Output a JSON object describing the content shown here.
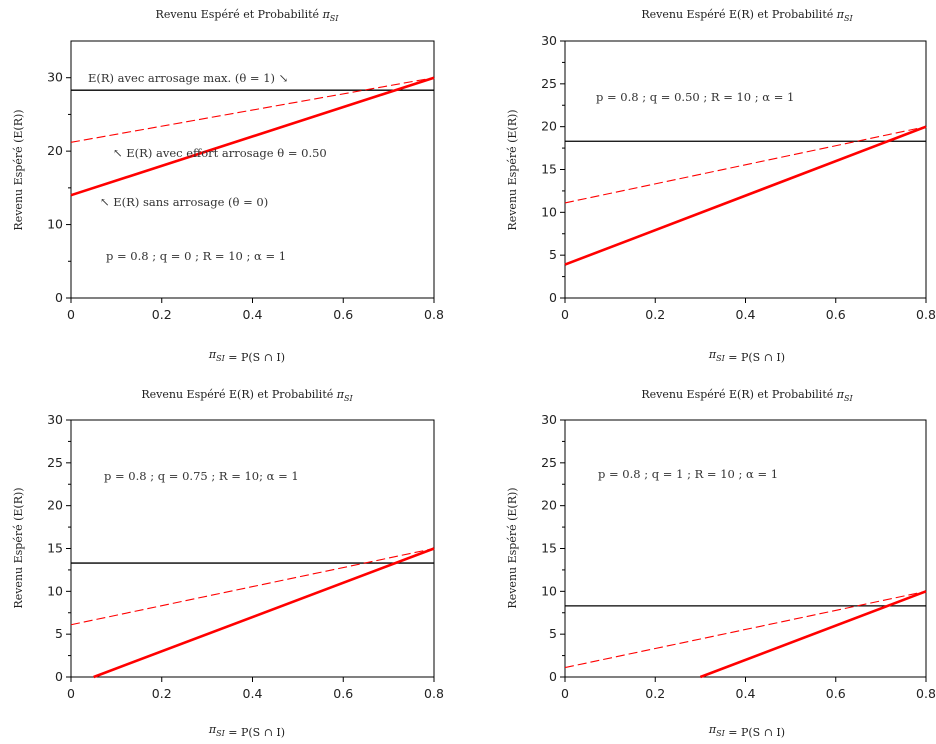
{
  "chart_data": [
    {
      "type": "line",
      "title": "Revenu Espéré et Probabilité π_SI",
      "xlabel": "π_SI = P(S ∩ I)",
      "ylabel": "Revenu Espéré (E(R))",
      "xlim": [
        0,
        0.8
      ],
      "ylim": [
        0,
        35
      ],
      "xticks": [
        "0",
        "0.2",
        "0.4",
        "0.6",
        "0.8"
      ],
      "yticks": [
        "0",
        "10",
        "20",
        "30"
      ],
      "series": [
        {
          "x": [
            0,
            0.8
          ],
          "y": [
            28.3,
            28.3
          ],
          "color": "#000000",
          "style": "solid"
        },
        {
          "x": [
            0,
            0.8
          ],
          "y": [
            21.2,
            30.0
          ],
          "color": "#ff0000",
          "style": "dashed"
        },
        {
          "x": [
            0,
            0.8
          ],
          "y": [
            14.0,
            30.0
          ],
          "color": "#ff0000",
          "style": "solid-thick"
        }
      ],
      "annotations": [
        "E(R) avec arrosage max. (θ = 1) ↘",
        "↖ E(R) avec effort arrosage  θ = 0.50",
        "↖ E(R) sans arrosage (θ = 0)",
        "p  =  0.8 ;  q  =  0 ;  R  =  10 ;  α = 1"
      ]
    },
    {
      "type": "line",
      "title": "Revenu Espéré E(R) et Probabilité π_SI",
      "xlabel": "π_SI = P(S ∩ I)",
      "ylabel": "Revenu Espéré (E(R))",
      "xlim": [
        0,
        0.8
      ],
      "ylim": [
        0,
        30
      ],
      "xticks": [
        "0",
        "0.2",
        "0.4",
        "0.6",
        "0.8"
      ],
      "yticks": [
        "0",
        "5",
        "10",
        "15",
        "20",
        "25",
        "30"
      ],
      "series": [
        {
          "x": [
            0,
            0.8
          ],
          "y": [
            18.3,
            18.3
          ],
          "color": "#000000",
          "style": "solid"
        },
        {
          "x": [
            0,
            0.8
          ],
          "y": [
            11.1,
            20.0
          ],
          "color": "#ff0000",
          "style": "dashed"
        },
        {
          "x": [
            0,
            0.8
          ],
          "y": [
            3.9,
            20.0
          ],
          "color": "#ff0000",
          "style": "solid-thick"
        }
      ],
      "annotations": [
        "p  =  0.8 ;  q  =  0.50 ;  R  =  10  ;  α = 1"
      ]
    },
    {
      "type": "line",
      "title": "Revenu Espéré E(R) et Probabilité π_SI",
      "xlabel": "π_SI = P(S ∩ I)",
      "ylabel": "Revenu Espéré (E(R))",
      "xlim": [
        0,
        0.8
      ],
      "ylim": [
        0,
        30
      ],
      "xticks": [
        "0",
        "0.2",
        "0.4",
        "0.6",
        "0.8"
      ],
      "yticks": [
        "0",
        "5",
        "10",
        "15",
        "20",
        "25",
        "30"
      ],
      "series": [
        {
          "x": [
            0,
            0.8
          ],
          "y": [
            13.3,
            13.3
          ],
          "color": "#000000",
          "style": "solid"
        },
        {
          "x": [
            0,
            0.8
          ],
          "y": [
            6.1,
            15.0
          ],
          "color": "#ff0000",
          "style": "dashed"
        },
        {
          "x": [
            0.05,
            0.8
          ],
          "y": [
            0,
            15.0
          ],
          "color": "#ff0000",
          "style": "solid-thick"
        }
      ],
      "annotations": [
        "p  =  0.8 ;  q  =  0.75 ;  R  =  10;  α = 1"
      ]
    },
    {
      "type": "line",
      "title": "Revenu Espéré E(R) et Probabilité π_SI",
      "xlabel": "π_SI = P(S ∩ I)",
      "ylabel": "Revenu Espéré (E(R))",
      "xlim": [
        0,
        0.8
      ],
      "ylim": [
        0,
        30
      ],
      "xticks": [
        "0",
        "0.2",
        "0.4",
        "0.6",
        "0.8"
      ],
      "yticks": [
        "0",
        "5",
        "10",
        "15",
        "20",
        "25",
        "30"
      ],
      "series": [
        {
          "x": [
            0,
            0.8
          ],
          "y": [
            8.3,
            8.3
          ],
          "color": "#000000",
          "style": "solid"
        },
        {
          "x": [
            0,
            0.8
          ],
          "y": [
            1.1,
            10.0
          ],
          "color": "#ff0000",
          "style": "dashed"
        },
        {
          "x": [
            0.3,
            0.8
          ],
          "y": [
            0,
            10.0
          ],
          "color": "#ff0000",
          "style": "solid-thick"
        }
      ],
      "annotations": [
        "p  =  0.8 ;  q  =  1 ;  R  =  10 ;  α = 1"
      ]
    }
  ]
}
